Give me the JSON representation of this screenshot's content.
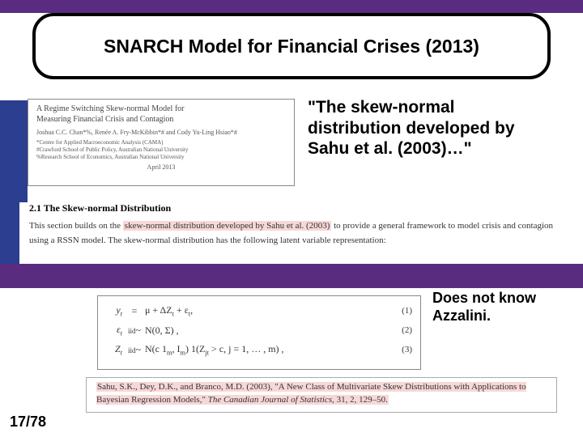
{
  "colors": {
    "purple": "#5a2c7f",
    "blue": "#2c3e8f",
    "highlight": "#f7d7d7",
    "white": "#ffffff",
    "black": "#000000"
  },
  "title": "SNARCH Model for Financial Crises (2013)",
  "paper": {
    "title_line1": "A Regime Switching Skew-normal Model for",
    "title_line2": "Measuring Financial Crisis and Contagion",
    "authors": "Joshua C.C. Chan*%, Renée A. Fry-McKibbin*# and Cody Yu-Ling Hsiao*#",
    "affil1": "*Centre for Applied Macroeconomic Analysis (CAMA)",
    "affil2": "#Crawford School of Public Policy, Australian National University",
    "affil3": "%Research School of Economics, Australian National University",
    "date": "April 2013"
  },
  "quote": "\"The skew-normal distribution developed by Sahu et al. (2003)…\"",
  "section": {
    "heading": "2.1   The Skew-normal Distribution",
    "pre": "This section builds on the ",
    "hl": "skew-normal distribution developed by Sahu et al. (2003)",
    "post": " to provide a general framework to model crisis and contagion using a RSSN model. The skew-normal distribution has the following latent variable representation:"
  },
  "annotation": "Does not know Azzalini.",
  "equations": {
    "e1": {
      "lhs": "y<sub>t</sub>",
      "eq": "=",
      "rhs": "μ + ΔZ<sub>t</sub> + ε<sub>t</sub>,",
      "num": "(1)"
    },
    "e2": {
      "lhs": "ε<sub>t</sub>",
      "eq": "<span style='font-size:9px'>iid</span>~",
      "rhs": "N(0, Σ) ,",
      "num": "(2)"
    },
    "e3": {
      "lhs": "Z<sub>t</sub>",
      "eq": "<span style='font-size:9px'>iid</span>~",
      "rhs": "N(c 1<sub>m</sub>, I<sub>m</sub>) 1(Z<sub>jt</sub> &gt; c, j = 1, … , m) ,",
      "num": "(3)"
    }
  },
  "citation": {
    "pre": "Sahu, S.K., Dey, D.K., and Branco, M.D. (2003), \"A New Class of Multivariate Skew Distributions with Applications to Bayesian Regression Models,\" ",
    "journal": "The Canadian Journal of Statistics",
    "post": ", 31, 2, 129–50."
  },
  "page": "17/78"
}
